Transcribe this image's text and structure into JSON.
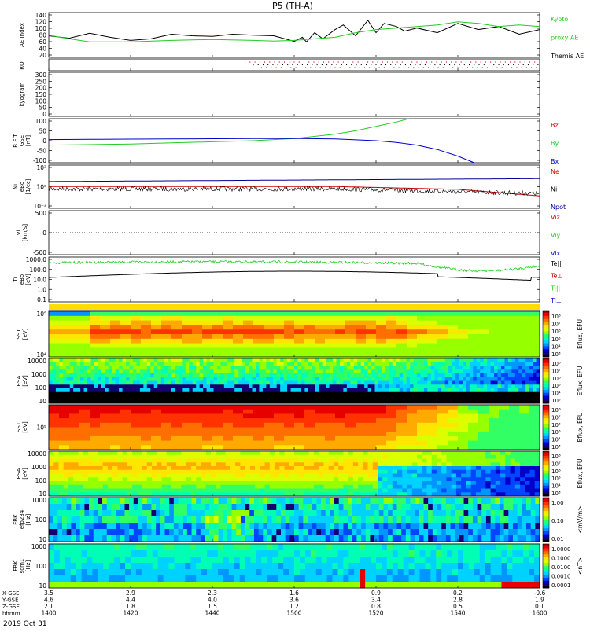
{
  "title": "P5 (TH-A)",
  "date": "2019 Oct 31",
  "chart_data": [
    {
      "type": "line",
      "panel": "ae",
      "ylabel": "AE Index",
      "yticks": [
        "140",
        "120",
        "100",
        "80",
        "60",
        "40",
        "20"
      ],
      "ylim": [
        0,
        145
      ],
      "legend": [
        {
          "text": "Kyoto",
          "color": "#22cc22"
        },
        {
          "text": "proxy AE",
          "color": "#22cc22"
        },
        {
          "text": "Themis AE",
          "color": "#000000"
        }
      ],
      "series": [
        {
          "name": "Themis AE",
          "color": "#000000",
          "x": [
            0,
            5,
            10,
            15,
            20,
            25,
            30,
            35,
            40,
            45,
            50,
            55,
            60,
            62,
            63,
            65,
            67,
            70,
            72,
            75,
            78,
            80,
            82,
            85,
            87,
            90,
            95,
            100,
            105,
            110,
            115,
            120
          ],
          "values": [
            70,
            62,
            78,
            65,
            55,
            60,
            75,
            70,
            68,
            75,
            72,
            70,
            52,
            65,
            50,
            80,
            60,
            90,
            105,
            70,
            120,
            80,
            110,
            100,
            85,
            95,
            80,
            110,
            90,
            100,
            75,
            90
          ]
        },
        {
          "name": "Kyoto proxy AE",
          "color": "#22cc22",
          "x": [
            0,
            5,
            10,
            20,
            30,
            40,
            50,
            55,
            60,
            65,
            70,
            75,
            80,
            85,
            90,
            95,
            100,
            105,
            110,
            115,
            120
          ],
          "values": [
            72,
            60,
            50,
            50,
            55,
            58,
            55,
            53,
            55,
            60,
            65,
            80,
            90,
            95,
            100,
            105,
            115,
            110,
            100,
            105,
            100
          ]
        }
      ]
    },
    {
      "type": "scatter",
      "panel": "roi",
      "ylabel": "ROI",
      "note_x_start_min": 48
    },
    {
      "type": "line",
      "panel": "kyogram",
      "ylabel": "kyogram",
      "yticks": [
        "300",
        "250",
        "200",
        "150",
        "100",
        "50",
        "0"
      ],
      "ylim": [
        0,
        300
      ]
    },
    {
      "type": "line",
      "panel": "bfit",
      "ylabel": "B FIT",
      "ylabel2": "GSE",
      "ylabel3": "[nT]",
      "yticks": [
        "100",
        "50",
        "0",
        "-50",
        "-100"
      ],
      "ylim": [
        -100,
        100
      ],
      "legend": [
        {
          "text": "Bz",
          "color": "#cc0000"
        },
        {
          "text": "By",
          "color": "#22cc22"
        },
        {
          "text": "Bx",
          "color": "#0000cc"
        }
      ],
      "series": [
        {
          "name": "By",
          "color": "#22cc22",
          "x": [
            0,
            10,
            20,
            30,
            40,
            50,
            60,
            70,
            75,
            80,
            85,
            88
          ],
          "values": [
            -20,
            -18,
            -15,
            -10,
            -5,
            0,
            10,
            30,
            45,
            65,
            85,
            100
          ]
        },
        {
          "name": "Bx",
          "color": "#0000cc",
          "x": [
            0,
            10,
            20,
            30,
            40,
            50,
            60,
            70,
            80,
            85,
            90,
            95,
            100,
            104
          ],
          "values": [
            5,
            6,
            7,
            8,
            9,
            10,
            10,
            8,
            0,
            -8,
            -20,
            -40,
            -70,
            -100
          ]
        }
      ]
    },
    {
      "type": "line",
      "panel": "ni",
      "ylabel": "Ni",
      "ylabel2": "eBo",
      "ylabel3": "[1/cc]",
      "yticks": [
        "10²",
        "10⁰",
        "10⁻²"
      ],
      "legend": [
        {
          "text": "Ne",
          "color": "#cc0000"
        },
        {
          "text": "Ni",
          "color": "#000000"
        },
        {
          "text": "Npot",
          "color": "#000099"
        }
      ]
    },
    {
      "type": "line",
      "panel": "vi",
      "ylabel": "Vi",
      "ylabel2": "[km/s]",
      "yticks": [
        "500",
        "0",
        "-500"
      ],
      "ylim": [
        -500,
        500
      ],
      "legend": [
        {
          "text": "Viz",
          "color": "#cc0000"
        },
        {
          "text": "Viy",
          "color": "#22cc22"
        },
        {
          "text": "Vix",
          "color": "#0000cc"
        }
      ]
    },
    {
      "type": "line",
      "panel": "ti",
      "ylabel": "Ti",
      "ylabel2": "eBo",
      "ylabel3": "[eV]",
      "yticks": [
        "1000.0",
        "100.0",
        "10.0",
        "1.0",
        "0.1"
      ],
      "legend": [
        {
          "text": "Te||",
          "color": "#000000"
        },
        {
          "text": "Te⊥",
          "color": "#cc0000"
        },
        {
          "text": "Ti||",
          "color": "#22cc22"
        },
        {
          "text": "Ti⊥",
          "color": "#0000cc"
        }
      ]
    },
    {
      "type": "heatmap",
      "panel": "sst_e",
      "ylabel": "SST",
      "ylabel2": "[eV]",
      "yticks": [
        "10⁵",
        "10⁴"
      ],
      "colorbar_label": "Eflux, EFU",
      "colorbar_ticks": [
        "10⁸",
        "10⁷",
        "10⁶",
        "10⁵",
        "10⁴",
        "10³"
      ]
    },
    {
      "type": "heatmap",
      "panel": "esa_e",
      "ylabel": "ESA",
      "ylabel2": "[eV]",
      "yticks": [
        "10000",
        "1000",
        "100",
        "10"
      ],
      "colorbar_label": "Eflux, EFU",
      "colorbar_ticks": [
        "10⁸",
        "10⁷",
        "10⁶",
        "10⁵",
        "10⁴",
        "10³"
      ]
    },
    {
      "type": "heatmap",
      "panel": "sst_i",
      "ylabel": "SST",
      "ylabel2": "[eV]",
      "yticks": [
        "10⁵"
      ],
      "colorbar_label": "Eflux, EFU",
      "colorbar_ticks": [
        "10⁸",
        "10⁷",
        "10⁶",
        "10⁵",
        "10⁴",
        "10³"
      ]
    },
    {
      "type": "heatmap",
      "panel": "esa_i",
      "ylabel": "ESA",
      "ylabel2": "[eV]",
      "yticks": [
        "10000",
        "1000",
        "100",
        "10"
      ],
      "colorbar_label": "Eflux, EFU",
      "colorbar_ticks": [
        "10⁸",
        "10⁷",
        "10⁶",
        "10⁵",
        "10⁴",
        "10³"
      ]
    },
    {
      "type": "heatmap",
      "panel": "fbk_e",
      "ylabel": "FBK",
      "ylabel2": "efp234",
      "ylabel3": "[Hz]",
      "yticks": [
        "1000",
        "100",
        "10"
      ],
      "colorbar_label": "<mV/m>",
      "colorbar_ticks": [
        "1.00",
        "0.10",
        "0.01"
      ]
    },
    {
      "type": "heatmap",
      "panel": "fbk_b",
      "ylabel": "FBK",
      "ylabel2": "scm1",
      "ylabel3": "[Hz]",
      "yticks": [
        "1000",
        "100",
        "10"
      ],
      "colorbar_label": "<nT>",
      "colorbar_ticks": [
        "1.0000",
        "0.1000",
        "0.0100",
        "0.0010",
        "0.0001"
      ]
    }
  ],
  "xaxis": {
    "row_labels": [
      "X-GSE",
      "Y-GSE",
      "Z-GSE",
      "hhmm"
    ],
    "columns": [
      {
        "min": 0,
        "vals": [
          "3.5",
          "4.6",
          "2.1",
          "1400"
        ]
      },
      {
        "min": 20,
        "vals": [
          "2.9",
          "4.4",
          "1.8",
          "1420"
        ]
      },
      {
        "min": 40,
        "vals": [
          "2.3",
          "4.0",
          "1.5",
          "1440"
        ]
      },
      {
        "min": 60,
        "vals": [
          "1.6",
          "3.6",
          "1.2",
          "1500"
        ]
      },
      {
        "min": 80,
        "vals": [
          "0.9",
          "3.4",
          "0.8",
          "1520"
        ]
      },
      {
        "min": 100,
        "vals": [
          "0.2",
          "2.8",
          "0.5",
          "1540"
        ]
      },
      {
        "min": 120,
        "vals": [
          "-0.6",
          "1.9",
          "0.1",
          "1600"
        ]
      }
    ]
  }
}
